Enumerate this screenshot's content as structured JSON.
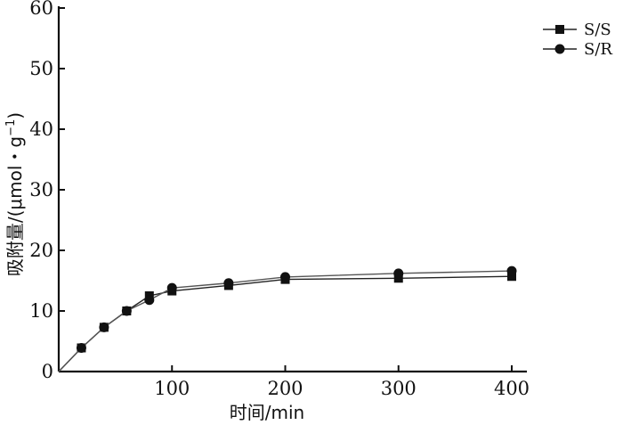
{
  "chart_data": {
    "type": "line",
    "title": "",
    "xlabel": "时间/min",
    "ylabel": "吸附量/(μmol・g",
    "ylabel_superscript": "−1",
    "ylabel_close": ")",
    "xlim": [
      0,
      400
    ],
    "ylim": [
      0,
      60
    ],
    "xticks": [
      100,
      200,
      300,
      400
    ],
    "yticks": [
      0,
      10,
      20,
      30,
      40,
      50,
      60
    ],
    "grid": false,
    "legend_position": "top-right",
    "series": [
      {
        "name": "S/S",
        "marker": "square",
        "x": [
          0,
          20,
          40,
          60,
          80,
          100,
          150,
          200,
          300,
          400
        ],
        "y": [
          0,
          3.9,
          7.3,
          10.0,
          12.5,
          13.3,
          14.2,
          15.2,
          15.4,
          15.7
        ]
      },
      {
        "name": "S/R",
        "marker": "circle",
        "x": [
          0,
          20,
          40,
          60,
          80,
          100,
          150,
          200,
          300,
          400
        ],
        "y": [
          0,
          3.9,
          7.3,
          10.0,
          11.8,
          13.8,
          14.6,
          15.6,
          16.2,
          16.6
        ]
      }
    ]
  }
}
